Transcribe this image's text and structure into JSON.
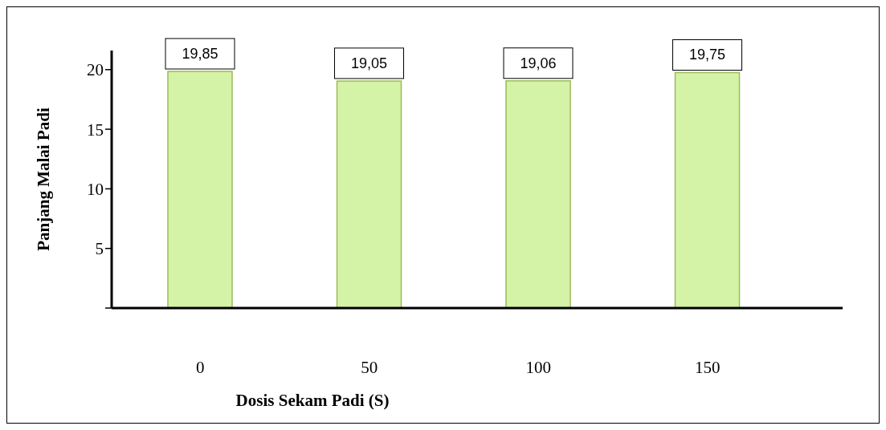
{
  "chart_data": {
    "type": "bar",
    "xlabel": "Dosis Sekam Padi (S)",
    "ylabel": "Panjang Malai Padi",
    "categories": [
      "0",
      "50",
      "100",
      "150"
    ],
    "values": [
      19.85,
      19.05,
      19.06,
      19.75
    ],
    "value_labels": [
      "19,85",
      "19,05",
      "19,06",
      "19,75"
    ],
    "color": "#d5f3a6",
    "ylim": [
      0,
      21.6
    ],
    "yticks": [
      {
        "value": 0,
        "label": null
      },
      5,
      10,
      15,
      20
    ],
    "grid": false
  }
}
